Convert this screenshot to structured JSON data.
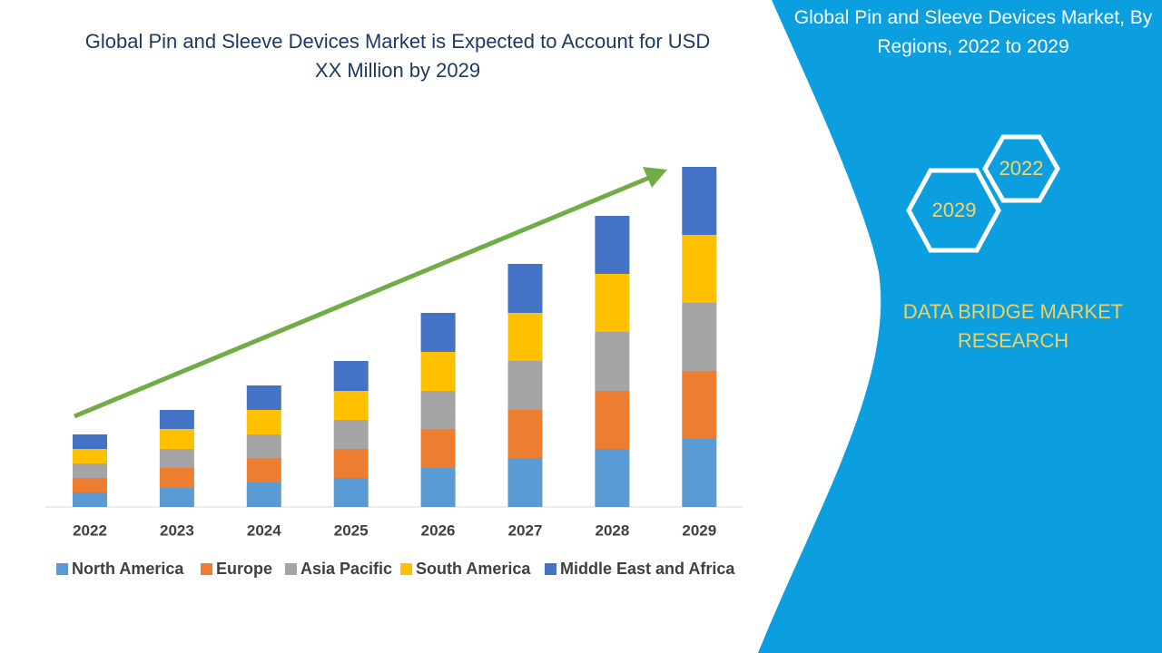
{
  "chart_data": {
    "type": "stacked-bar",
    "title": "Global Pin and Sleeve Devices Market is Expected to Account for USD XX Million by 2029",
    "categories": [
      "2022",
      "2023",
      "2024",
      "2025",
      "2026",
      "2027",
      "2028",
      "2029"
    ],
    "series": [
      {
        "name": "North America",
        "color": "#5b9bd5",
        "values": [
          16,
          21,
          27,
          32,
          43,
          54,
          64,
          75
        ]
      },
      {
        "name": "Europe",
        "color": "#ed7d31",
        "values": [
          16,
          22,
          27,
          32,
          43,
          53,
          64,
          75
        ]
      },
      {
        "name": "Asia Pacific",
        "color": "#a5a5a5",
        "values": [
          16,
          21,
          26,
          32,
          42,
          54,
          65,
          75
        ]
      },
      {
        "name": "South America",
        "color": "#ffc000",
        "values": [
          16,
          22,
          27,
          32,
          43,
          53,
          64,
          75
        ]
      },
      {
        "name": "Middle East and Africa",
        "color": "#4472c4",
        "values": [
          16,
          21,
          27,
          33,
          43,
          54,
          64,
          75
        ]
      }
    ],
    "ylim": [
      0,
      400
    ]
  },
  "sidebar": {
    "title": "Global Pin and Sleeve Devices Market, By Regions, 2022 to 2029",
    "hexagons": [
      "2022",
      "2029"
    ],
    "brand": "DATA BRIDGE MARKET RESEARCH"
  }
}
